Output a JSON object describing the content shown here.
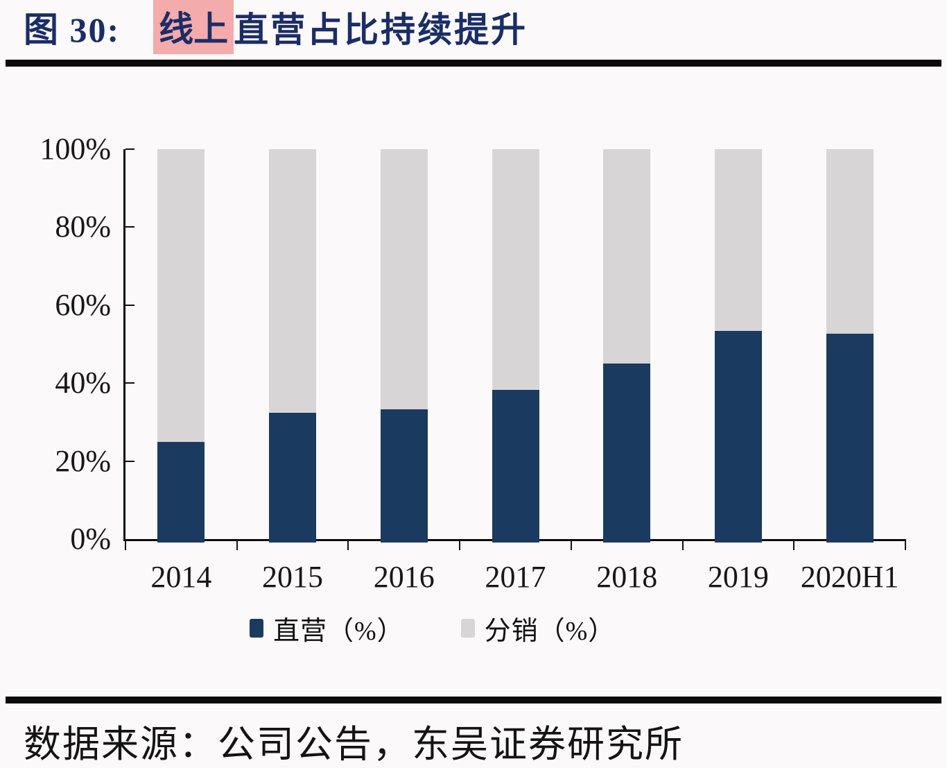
{
  "title": {
    "figure_label": "图 30:",
    "highlight": "线上",
    "rest": "直营占比持续提升"
  },
  "chart_data": {
    "type": "bar",
    "stacked": true,
    "categories": [
      "2014",
      "2015",
      "2016",
      "2017",
      "2018",
      "2019",
      "2020H1"
    ],
    "series": [
      {
        "name": "直营（%）",
        "values": [
          25.0,
          32.3,
          33.3,
          38.2,
          45.1,
          53.4,
          52.7
        ],
        "color": "#1b3a60"
      },
      {
        "name": "分销（%）",
        "values": [
          75.0,
          67.7,
          66.7,
          61.8,
          54.9,
          46.6,
          47.3
        ],
        "color": "#d8d5d6"
      }
    ],
    "ylim": [
      0,
      100
    ],
    "ytick_labels": [
      "100%",
      "80%",
      "60%",
      "40%",
      "20%",
      "0%"
    ],
    "grid": false,
    "legend_position": "bottom-center"
  },
  "footer": {
    "source": "数据来源：公司公告，东吴证券研究所"
  },
  "colors": {
    "title_text": "#1b2d66",
    "title_highlight": "#f3abab",
    "bar_direct": "#1b3a60",
    "bar_distribution": "#d8d5d6",
    "rule": "#0c0c0c",
    "background": "#fbf9f9"
  }
}
